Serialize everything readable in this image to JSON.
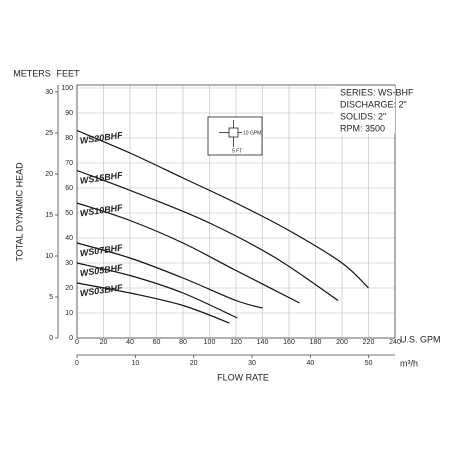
{
  "chart_data": {
    "type": "line",
    "y_unit": "FEET",
    "y2_unit": "METERS",
    "y_label": "TOTAL DYNAMIC HEAD",
    "x_label": "FLOW RATE",
    "x_unit": "U.S. GPM",
    "x2_unit": "m³/h",
    "info": [
      "SERIES: WS-BHF",
      "DISCHARGE: 2\"",
      "SOLIDS: 2\"",
      "RPM: 3500"
    ],
    "diagram_labels": [
      "10 GPM",
      "5 FT"
    ],
    "xlim": [
      0,
      240
    ],
    "xticks": [
      0,
      20,
      40,
      60,
      80,
      100,
      120,
      140,
      160,
      180,
      200,
      220,
      240
    ],
    "x2lim": [
      0,
      54.51
    ],
    "x2ticks": [
      0,
      10,
      20,
      30,
      40,
      50
    ],
    "ylim": [
      0,
      100
    ],
    "yticks": [
      0,
      10,
      20,
      30,
      40,
      50,
      60,
      70,
      80,
      90,
      100
    ],
    "y2lim": [
      0,
      30.48
    ],
    "y2ticks": [
      0,
      5,
      10,
      15,
      20,
      25,
      30
    ],
    "grid": true,
    "series": [
      {
        "name": "WS20BHF",
        "color": "#111111",
        "x": [
          0,
          40,
          80,
          120,
          160,
          200,
          220
        ],
        "values": [
          83,
          74,
          64,
          54,
          43,
          30,
          20
        ]
      },
      {
        "name": "WS15BHF",
        "color": "#111111",
        "x": [
          0,
          50,
          100,
          150,
          197
        ],
        "values": [
          67,
          57,
          46,
          32,
          15
        ]
      },
      {
        "name": "WS10BHF",
        "color": "#111111",
        "x": [
          0,
          40,
          80,
          120,
          168
        ],
        "values": [
          54,
          47,
          38,
          27,
          14
        ]
      },
      {
        "name": "WS07BHF",
        "color": "#111111",
        "x": [
          0,
          40,
          80,
          120,
          140
        ],
        "values": [
          38,
          32,
          24,
          15,
          12
        ]
      },
      {
        "name": "WS05BHF",
        "color": "#111111",
        "x": [
          0,
          40,
          80,
          121
        ],
        "values": [
          30,
          25,
          18,
          8
        ]
      },
      {
        "name": "WS03BHF",
        "color": "#111111",
        "x": [
          0,
          40,
          80,
          115
        ],
        "values": [
          22,
          18,
          13,
          6
        ]
      }
    ]
  }
}
